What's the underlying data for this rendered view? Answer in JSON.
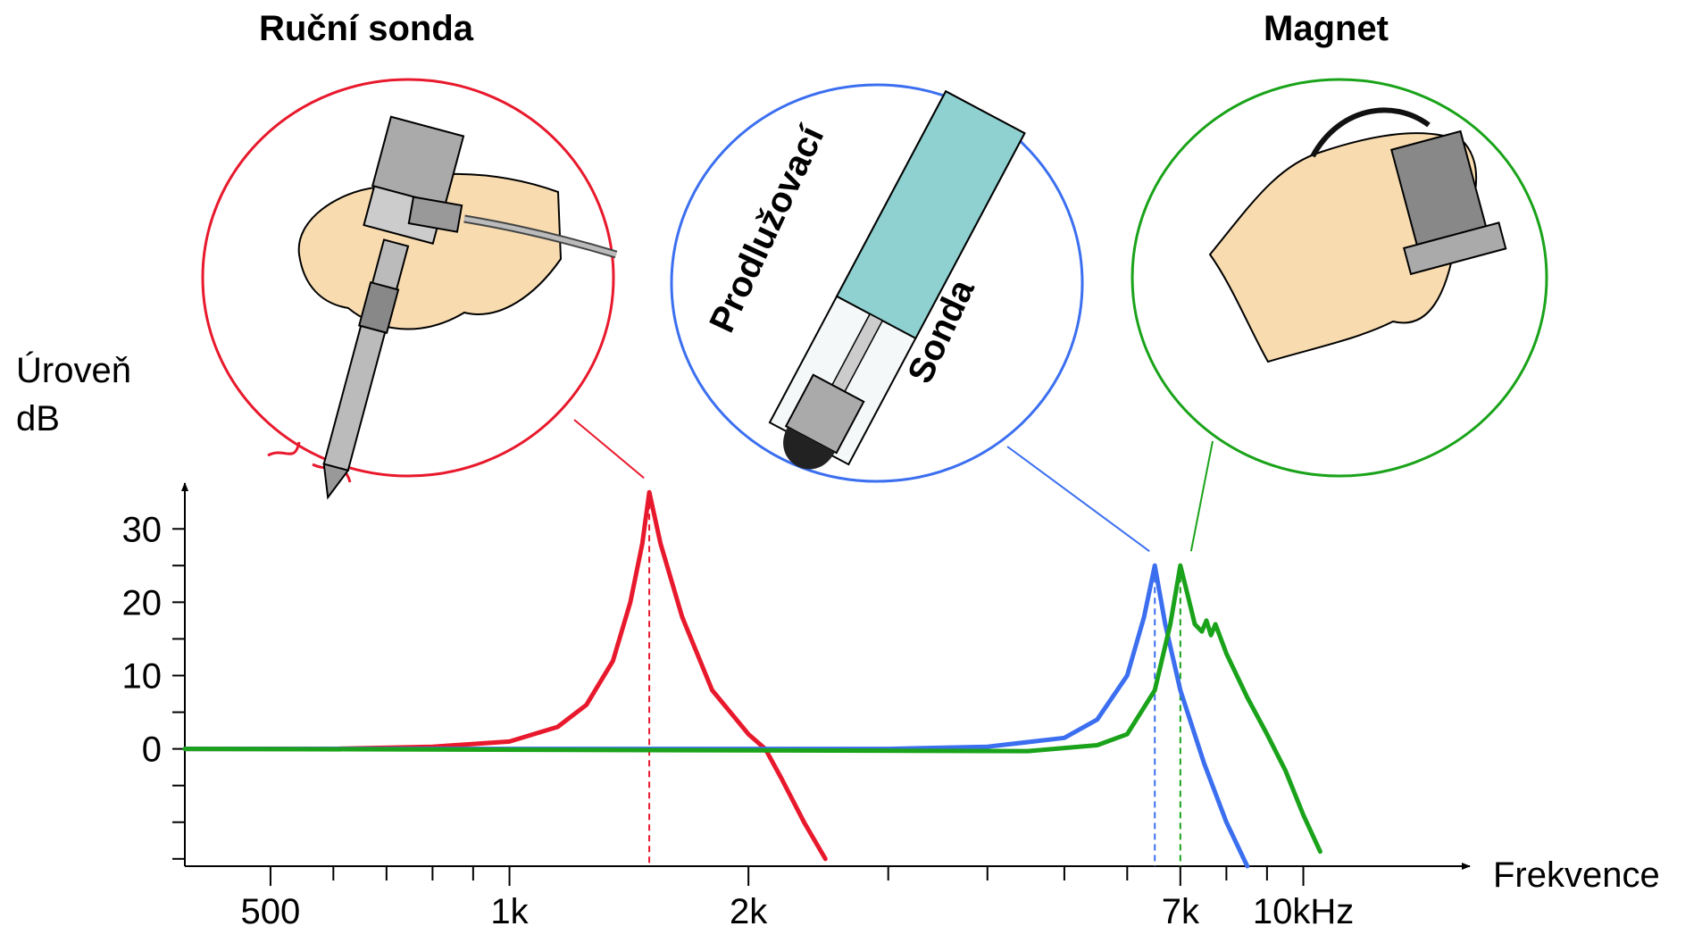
{
  "chart_data": {
    "type": "line",
    "x_label": "Frekvence",
    "y_label": [
      "Úroveň",
      "dB"
    ],
    "xscale": "log",
    "xlim": [
      390,
      16000
    ],
    "ylim": [
      -16,
      36
    ],
    "xticks": [
      500,
      {
        "value": 1000,
        "label": "1k"
      },
      {
        "value": 2000,
        "label": "2k"
      },
      {
        "value": 7000,
        "label": "7k"
      },
      {
        "value": 10000,
        "label": "10kHz"
      }
    ],
    "xminor": [
      600,
      700,
      800,
      900,
      3000,
      4000,
      5000,
      6000,
      8000,
      9000
    ],
    "yticks": [
      0,
      10,
      20,
      30
    ],
    "yminor": [
      -15,
      -10,
      -5,
      5,
      15,
      25
    ],
    "annotations": [
      "Prodlužovací",
      "Sonda"
    ],
    "series": [
      {
        "name": "Ruční sonda",
        "color": "#e8192c",
        "x": [
          390,
          600,
          800,
          1000,
          1150,
          1250,
          1350,
          1420,
          1470,
          1500,
          1550,
          1650,
          1800,
          2000,
          2100,
          2200,
          2350,
          2500
        ],
        "values": [
          0,
          0,
          0.3,
          1,
          3,
          6,
          12,
          20,
          28,
          35,
          28,
          18,
          8,
          2,
          0,
          -4,
          -10,
          -15
        ]
      },
      {
        "color": "#3b6ff0",
        "x": [
          390,
          3000,
          4000,
          5000,
          5500,
          6000,
          6300,
          6500,
          6700,
          7000,
          7500,
          8000,
          8500
        ],
        "values": [
          0,
          0,
          0.3,
          1.5,
          4,
          10,
          18,
          25,
          17,
          8,
          -2,
          -10,
          -16
        ]
      },
      {
        "name": "Magnet",
        "color": "#1aa31a",
        "x": [
          390,
          4500,
          5500,
          6000,
          6500,
          6800,
          7000,
          7150,
          7300,
          7450,
          7550,
          7650,
          7750,
          8000,
          8500,
          9000,
          9500,
          10000,
          10500
        ],
        "values": [
          0,
          -0.3,
          0.5,
          2,
          8,
          17,
          25,
          21,
          17,
          16,
          17.5,
          15.5,
          17,
          13,
          7,
          2,
          -3,
          -9,
          -14
        ]
      }
    ]
  }
}
